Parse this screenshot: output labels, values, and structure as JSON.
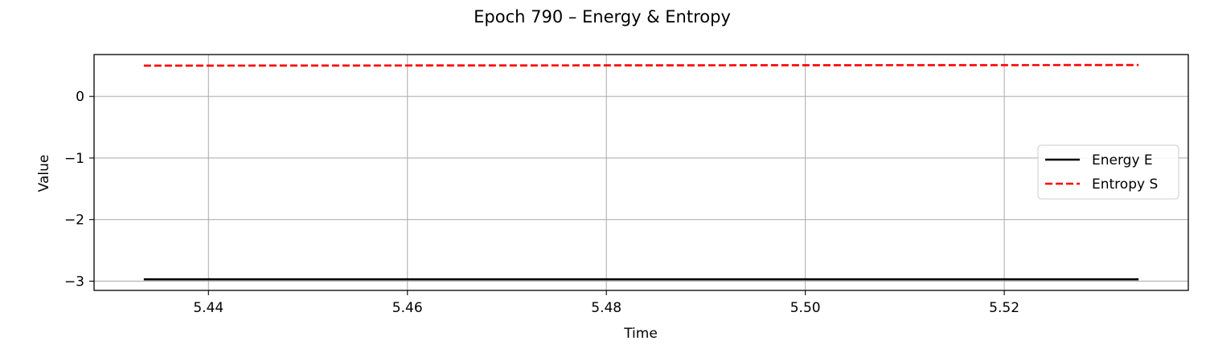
{
  "chart_data": {
    "type": "line",
    "title": "Epoch 790 – Energy & Entropy",
    "xlabel": "Time",
    "ylabel": "Value",
    "xlim": [
      5.4285,
      5.5385
    ],
    "ylim": [
      -3.15,
      0.68
    ],
    "xticks": [
      5.44,
      5.46,
      5.48,
      5.5,
      5.52
    ],
    "xtick_labels": [
      "5.44",
      "5.46",
      "5.48",
      "5.50",
      "5.52"
    ],
    "yticks": [
      0,
      -1,
      -2,
      -3
    ],
    "ytick_labels": [
      "0",
      "−1",
      "−2",
      "−3"
    ],
    "grid": true,
    "legend_position": "center-right",
    "series": [
      {
        "name": "Energy E",
        "color": "#000000",
        "dash": "solid",
        "x": [
          5.4335,
          5.5335
        ],
        "y": [
          -2.97,
          -2.97
        ]
      },
      {
        "name": "Entropy S",
        "color": "#ff0000",
        "dash": "dashed",
        "x": [
          5.4335,
          5.5335
        ],
        "y": [
          0.5,
          0.51
        ]
      }
    ]
  }
}
